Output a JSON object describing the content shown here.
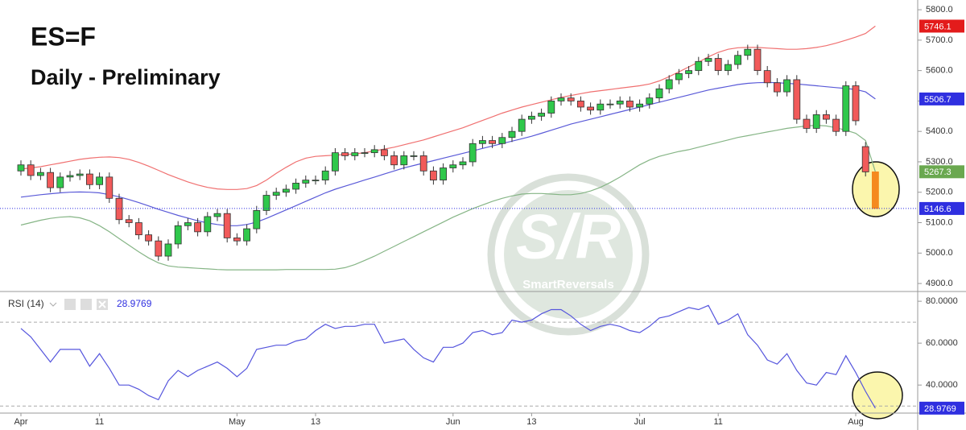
{
  "chart_data": [
    {
      "type": "candlestick",
      "title": "ES=F",
      "subtitle": "Daily - Preliminary",
      "categories": [
        "Apr",
        null,
        null,
        null,
        null,
        null,
        null,
        null,
        "11",
        null,
        null,
        null,
        null,
        null,
        null,
        null,
        null,
        null,
        null,
        null,
        null,
        null,
        "May",
        null,
        null,
        null,
        null,
        null,
        null,
        null,
        "13",
        null,
        null,
        null,
        null,
        null,
        null,
        null,
        null,
        null,
        null,
        null,
        null,
        null,
        "Jun",
        null,
        null,
        null,
        null,
        null,
        null,
        null,
        "13",
        null,
        null,
        null,
        null,
        null,
        null,
        null,
        null,
        null,
        null,
        "Jul",
        null,
        null,
        null,
        null,
        null,
        null,
        null,
        "11",
        null,
        null,
        null,
        null,
        null,
        null,
        null,
        null,
        null,
        null,
        null,
        null,
        null,
        "Aug",
        null,
        null
      ],
      "open": [
        5270,
        5290,
        5255,
        5265,
        5215,
        5250,
        5255,
        5260,
        5225,
        5250,
        5180,
        5110,
        5100,
        5060,
        5040,
        4990,
        5030,
        5090,
        5100,
        5070,
        5120,
        5130,
        5050,
        5040,
        5080,
        5140,
        5190,
        5200,
        5210,
        5230,
        5240,
        5240,
        5270,
        5330,
        5320,
        5330,
        5330,
        5340,
        5320,
        5290,
        5320,
        5320,
        5270,
        5240,
        5280,
        5290,
        5300,
        5360,
        5370,
        5360,
        5380,
        5400,
        5440,
        5450,
        5460,
        5500,
        5510,
        5500,
        5480,
        5470,
        5490,
        5490,
        5500,
        5480,
        5490,
        5510,
        5540,
        5570,
        5590,
        5600,
        5630,
        5640,
        5600,
        5620,
        5650,
        5670,
        5600,
        5560,
        5530,
        5570,
        5440,
        5410,
        5455,
        5440,
        5400,
        5550,
        5350,
        5267
      ],
      "high": [
        5305,
        5305,
        5280,
        5280,
        5265,
        5270,
        5275,
        5275,
        5265,
        5265,
        5195,
        5125,
        5115,
        5075,
        5055,
        5045,
        5105,
        5115,
        5115,
        5135,
        5145,
        5145,
        5065,
        5095,
        5155,
        5205,
        5215,
        5225,
        5245,
        5255,
        5255,
        5285,
        5345,
        5345,
        5345,
        5345,
        5355,
        5355,
        5335,
        5335,
        5335,
        5335,
        5285,
        5295,
        5305,
        5315,
        5375,
        5385,
        5385,
        5395,
        5415,
        5455,
        5465,
        5475,
        5515,
        5525,
        5525,
        5515,
        5495,
        5505,
        5505,
        5515,
        5515,
        5505,
        5525,
        5555,
        5585,
        5605,
        5615,
        5645,
        5655,
        5655,
        5635,
        5665,
        5685,
        5685,
        5615,
        5575,
        5585,
        5585,
        5455,
        5470,
        5470,
        5455,
        5565,
        5565,
        5365,
        5267
      ],
      "low": [
        5255,
        5240,
        5240,
        5200,
        5200,
        5235,
        5240,
        5210,
        5210,
        5165,
        5095,
        5085,
        5045,
        5025,
        4975,
        4975,
        5015,
        5075,
        5055,
        5055,
        5105,
        5035,
        5025,
        5025,
        5065,
        5125,
        5175,
        5185,
        5195,
        5215,
        5225,
        5225,
        5255,
        5305,
        5305,
        5315,
        5315,
        5305,
        5275,
        5275,
        5305,
        5255,
        5225,
        5225,
        5265,
        5275,
        5285,
        5345,
        5345,
        5345,
        5365,
        5385,
        5425,
        5435,
        5445,
        5485,
        5485,
        5465,
        5455,
        5455,
        5475,
        5475,
        5465,
        5465,
        5475,
        5495,
        5525,
        5555,
        5575,
        5585,
        5615,
        5585,
        5585,
        5605,
        5635,
        5585,
        5545,
        5515,
        5515,
        5425,
        5395,
        5395,
        5425,
        5385,
        5385,
        5420,
        5252,
        5146.6
      ],
      "close": [
        5290,
        5255,
        5265,
        5215,
        5250,
        5255,
        5260,
        5225,
        5250,
        5180,
        5110,
        5100,
        5060,
        5040,
        4990,
        5030,
        5090,
        5100,
        5070,
        5120,
        5130,
        5050,
        5040,
        5080,
        5140,
        5190,
        5200,
        5210,
        5230,
        5240,
        5240,
        5270,
        5330,
        5320,
        5330,
        5330,
        5340,
        5320,
        5290,
        5320,
        5320,
        5270,
        5240,
        5280,
        5290,
        5300,
        5360,
        5370,
        5360,
        5380,
        5400,
        5440,
        5450,
        5460,
        5500,
        5510,
        5500,
        5480,
        5470,
        5490,
        5490,
        5500,
        5480,
        5490,
        5510,
        5540,
        5570,
        5590,
        5600,
        5630,
        5640,
        5600,
        5620,
        5650,
        5670,
        5600,
        5560,
        5530,
        5570,
        5440,
        5410,
        5455,
        5440,
        5400,
        5550,
        5435,
        5267,
        5146.6
      ],
      "up_color": "#2fc84b",
      "down_color": "#f15a5a",
      "preliminary_color": "#f58a1f",
      "close_label_color": "#2f2fe0",
      "series": [
        {
          "color": "#f07070",
          "label_color": "#e31b1b",
          "values": [
            5276,
            5280,
            5284,
            5290,
            5296,
            5302,
            5308,
            5312,
            5315,
            5316,
            5314,
            5308,
            5298,
            5286,
            5272,
            5258,
            5246,
            5234,
            5224,
            5216,
            5211,
            5209,
            5209,
            5212,
            5222,
            5240,
            5262,
            5282,
            5300,
            5312,
            5318,
            5320,
            5322,
            5324,
            5326,
            5330,
            5336,
            5342,
            5348,
            5356,
            5364,
            5372,
            5382,
            5392,
            5402,
            5412,
            5424,
            5436,
            5448,
            5460,
            5470,
            5480,
            5488,
            5496,
            5504,
            5512,
            5518,
            5524,
            5530,
            5534,
            5538,
            5542,
            5546,
            5550,
            5556,
            5566,
            5580,
            5596,
            5612,
            5628,
            5645,
            5660,
            5670,
            5675,
            5676,
            5676,
            5674,
            5672,
            5670,
            5670,
            5672,
            5676,
            5682,
            5690,
            5700,
            5710,
            5722,
            5746.1
          ]
        },
        {
          "color": "#5a5ad8",
          "label_color": "#2f2fe0",
          "values": [
            5184,
            5188,
            5192,
            5195,
            5198,
            5200,
            5201,
            5200,
            5198,
            5192,
            5185,
            5176,
            5166,
            5155,
            5144,
            5134,
            5124,
            5115,
            5106,
            5099,
            5094,
            5090,
            5090,
            5094,
            5102,
            5114,
            5128,
            5142,
            5156,
            5170,
            5184,
            5198,
            5210,
            5220,
            5230,
            5240,
            5250,
            5260,
            5270,
            5280,
            5288,
            5296,
            5304,
            5312,
            5320,
            5328,
            5336,
            5344,
            5352,
            5360,
            5368,
            5376,
            5384,
            5394,
            5404,
            5414,
            5424,
            5432,
            5440,
            5448,
            5456,
            5464,
            5472,
            5480,
            5488,
            5496,
            5504,
            5512,
            5520,
            5528,
            5536,
            5542,
            5548,
            5554,
            5558,
            5560,
            5561,
            5560,
            5558,
            5556,
            5553,
            5550,
            5547,
            5544,
            5541,
            5538,
            5530,
            5506.7
          ]
        },
        {
          "color": "#86b586",
          "label_color": "#6aa84f",
          "values": [
            5092,
            5100,
            5108,
            5114,
            5118,
            5120,
            5116,
            5106,
            5090,
            5070,
            5048,
            5026,
            5004,
            4984,
            4968,
            4958,
            4954,
            4952,
            4950,
            4948,
            4946,
            4945,
            4945,
            4945,
            4945,
            4945,
            4945,
            4946,
            4946,
            4946,
            4946,
            4946,
            4947,
            4952,
            4962,
            4976,
            4990,
            5006,
            5022,
            5038,
            5054,
            5070,
            5086,
            5102,
            5118,
            5132,
            5146,
            5158,
            5170,
            5180,
            5188,
            5194,
            5196,
            5196,
            5194,
            5192,
            5192,
            5196,
            5204,
            5216,
            5232,
            5250,
            5270,
            5290,
            5306,
            5318,
            5326,
            5334,
            5340,
            5348,
            5356,
            5364,
            5372,
            5380,
            5386,
            5392,
            5398,
            5404,
            5410,
            5414,
            5418,
            5420,
            5418,
            5412,
            5404,
            5394,
            5370,
            5267.3
          ]
        }
      ],
      "ylim": [
        4879,
        5832
      ],
      "yticks": [
        {
          "value": 4900,
          "label": "4900.0"
        },
        {
          "value": 5000,
          "label": "5000.0"
        },
        {
          "value": 5100,
          "label": "5100.0"
        },
        {
          "value": 5200,
          "label": "5200.0"
        },
        {
          "value": 5300,
          "label": "5300.0"
        },
        {
          "value": 5400,
          "label": "5400.0"
        },
        {
          "value": 5500,
          "label": "5500.0"
        },
        {
          "value": 5600,
          "label": "5600.0"
        },
        {
          "value": 5700,
          "label": "5700.0"
        },
        {
          "value": 5800,
          "label": "5800.0"
        }
      ],
      "grid": false
    },
    {
      "type": "line",
      "title": "RSI (14)",
      "series": [
        {
          "color": "#5555dd",
          "label_color": "#2f2fe0",
          "values": [
            67,
            63,
            57,
            51,
            57,
            57,
            57,
            49,
            55,
            48,
            40,
            40,
            38,
            35,
            33,
            42,
            47,
            44,
            47,
            49,
            51,
            48,
            44,
            48,
            57,
            58,
            59,
            59,
            61,
            62,
            66,
            69,
            67,
            68,
            68,
            69,
            69,
            60,
            61,
            62,
            57,
            53,
            51,
            58,
            58,
            60,
            65,
            66,
            64,
            65,
            71,
            70,
            71,
            74,
            76,
            76,
            73,
            69,
            66,
            68,
            69,
            68,
            66,
            65,
            68,
            72,
            73,
            75,
            77,
            76,
            78,
            69,
            71,
            74,
            64,
            59,
            52,
            50,
            55,
            47,
            41,
            40,
            46,
            45,
            54,
            46,
            37,
            28.9769
          ]
        }
      ],
      "levels": [
        30,
        70
      ],
      "ylim": [
        27,
        83.5
      ],
      "yticks": [
        {
          "value": 40,
          "label": "40.0000"
        },
        {
          "value": 60,
          "label": "60.0000"
        },
        {
          "value": 80,
          "label": "80.0000"
        }
      ],
      "grid": false
    }
  ],
  "watermark": {
    "logo": "S/R",
    "text": "SmartReversals"
  }
}
